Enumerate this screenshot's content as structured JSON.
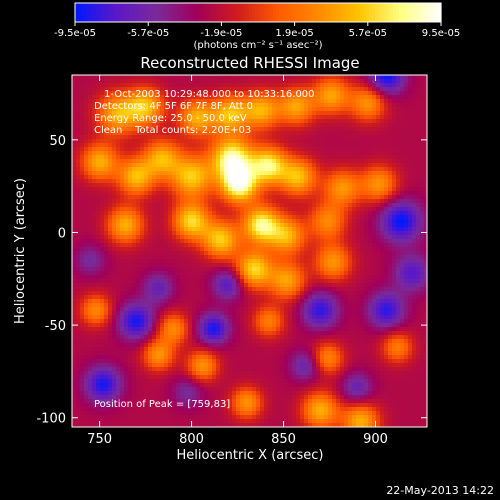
{
  "chart_data": {
    "type": "heatmap",
    "title": "Reconstructed RHESSI Image",
    "xlabel": "Heliocentric X (arcsec)",
    "ylabel": "Heliocentric Y (arcsec)",
    "xlim": [
      735,
      928
    ],
    "ylim": [
      -105,
      85
    ],
    "x_ticks": [
      750,
      800,
      850,
      900
    ],
    "x_tick_labels": [
      "750",
      "800",
      "850",
      "900"
    ],
    "y_ticks": [
      50,
      0,
      -50,
      -100
    ],
    "y_tick_labels": [
      "50",
      "0",
      "-50",
      "-100"
    ],
    "colorbar": {
      "vmin": -9.5e-05,
      "vmax": 9.5e-05,
      "ticks": [
        -9.5e-05,
        -5.7e-05,
        -1.9e-05,
        1.9e-05,
        5.7e-05,
        9.5e-05
      ],
      "tick_labels": [
        "-9.5e-05",
        "-5.7e-05",
        "-1.9e-05",
        "1.9e-05",
        "5.7e-05",
        "9.5e-05"
      ],
      "unit_label": "(photons cm⁻² s⁻¹ asec⁻²)",
      "colors": [
        "#0018ff",
        "#5a18c8",
        "#7a2a9a",
        "#a0005a",
        "#d01c1c",
        "#ff5a00",
        "#ff8a00",
        "#ffc400",
        "#ffff80",
        "#ffffff"
      ]
    },
    "annotations": [
      "1-Oct-2003 10:29:48.000 to 10:33:16.000",
      "Detectors: 4F 5F 6F 7F 8F, Att 0",
      "Energy Range: 25.0 - 50.0 keV",
      "Clean    Total counts: 2.20E+03",
      "Position of Peak = [759,83]"
    ],
    "peak": {
      "x": 759,
      "y": 83
    },
    "sources": [
      {
        "x": 760,
        "y": 64,
        "v": 5e-05,
        "s": 8
      },
      {
        "x": 775,
        "y": 68,
        "v": 5.5e-05,
        "s": 7
      },
      {
        "x": 803,
        "y": 62,
        "v": 5e-05,
        "s": 7
      },
      {
        "x": 821,
        "y": 64,
        "v": 5.5e-05,
        "s": 7
      },
      {
        "x": 838,
        "y": 66,
        "v": 5e-05,
        "s": 7
      },
      {
        "x": 857,
        "y": 68,
        "v": 4.5e-05,
        "s": 7
      },
      {
        "x": 876,
        "y": 74,
        "v": 4.5e-05,
        "s": 7
      },
      {
        "x": 896,
        "y": 70,
        "v": 4e-05,
        "s": 7
      },
      {
        "x": 750,
        "y": 38,
        "v": 5e-05,
        "s": 7
      },
      {
        "x": 770,
        "y": 30,
        "v": 5.5e-05,
        "s": 7
      },
      {
        "x": 784,
        "y": 40,
        "v": 5e-05,
        "s": 7
      },
      {
        "x": 800,
        "y": 30,
        "v": 6e-05,
        "s": 8
      },
      {
        "x": 822,
        "y": 40,
        "v": 8.5e-05,
        "s": 8
      },
      {
        "x": 826,
        "y": 26,
        "v": 9e-05,
        "s": 7
      },
      {
        "x": 842,
        "y": 36,
        "v": 7.5e-05,
        "s": 7
      },
      {
        "x": 858,
        "y": 30,
        "v": 5.5e-05,
        "s": 7
      },
      {
        "x": 882,
        "y": 24,
        "v": 4e-05,
        "s": 7
      },
      {
        "x": 902,
        "y": 26,
        "v": 4e-05,
        "s": 7
      },
      {
        "x": 764,
        "y": 4,
        "v": 5e-05,
        "s": 7
      },
      {
        "x": 800,
        "y": 6,
        "v": 6.5e-05,
        "s": 7
      },
      {
        "x": 816,
        "y": -4,
        "v": 6e-05,
        "s": 7
      },
      {
        "x": 838,
        "y": 4,
        "v": 8e-05,
        "s": 7
      },
      {
        "x": 852,
        "y": -2,
        "v": 5e-05,
        "s": 7
      },
      {
        "x": 874,
        "y": 6,
        "v": 3.5e-05,
        "s": 7
      },
      {
        "x": 834,
        "y": -20,
        "v": 6.5e-05,
        "s": 7
      },
      {
        "x": 852,
        "y": -26,
        "v": 4.5e-05,
        "s": 7
      },
      {
        "x": 877,
        "y": -16,
        "v": 4e-05,
        "s": 7
      },
      {
        "x": 748,
        "y": -42,
        "v": 3.5e-05,
        "s": 6
      },
      {
        "x": 790,
        "y": -52,
        "v": 3.5e-05,
        "s": 6
      },
      {
        "x": 842,
        "y": -48,
        "v": 3e-05,
        "s": 6
      },
      {
        "x": 782,
        "y": -66,
        "v": 4e-05,
        "s": 6
      },
      {
        "x": 806,
        "y": -72,
        "v": 4e-05,
        "s": 6
      },
      {
        "x": 874,
        "y": -68,
        "v": 3.5e-05,
        "s": 6
      },
      {
        "x": 912,
        "y": -62,
        "v": 3e-05,
        "s": 6
      },
      {
        "x": 830,
        "y": -92,
        "v": 4e-05,
        "s": 6
      },
      {
        "x": 870,
        "y": -96,
        "v": 5e-05,
        "s": 7
      },
      {
        "x": 892,
        "y": -102,
        "v": 5e-05,
        "s": 7
      },
      {
        "x": 914,
        "y": 6,
        "v": -9e-05,
        "s": 8
      },
      {
        "x": 906,
        "y": 84,
        "v": -9e-05,
        "s": 7
      },
      {
        "x": 770,
        "y": -48,
        "v": -8.5e-05,
        "s": 7
      },
      {
        "x": 752,
        "y": -82,
        "v": -8.5e-05,
        "s": 7
      },
      {
        "x": 870,
        "y": -42,
        "v": -8e-05,
        "s": 7
      },
      {
        "x": 906,
        "y": -42,
        "v": -8e-05,
        "s": 7
      },
      {
        "x": 812,
        "y": -52,
        "v": -8.5e-05,
        "s": 6
      },
      {
        "x": 920,
        "y": -22,
        "v": -7e-05,
        "s": 7
      },
      {
        "x": 890,
        "y": -84,
        "v": -6e-05,
        "s": 6
      },
      {
        "x": 820,
        "y": -28,
        "v": -7e-05,
        "s": 6
      },
      {
        "x": 782,
        "y": -30,
        "v": -6e-05,
        "s": 6
      },
      {
        "x": 745,
        "y": -15,
        "v": -5e-05,
        "s": 6
      },
      {
        "x": 798,
        "y": -86,
        "v": -5e-05,
        "s": 6
      },
      {
        "x": 862,
        "y": -72,
        "v": -6e-05,
        "s": 6
      }
    ]
  },
  "date_label": "22-May-2013 14:22"
}
